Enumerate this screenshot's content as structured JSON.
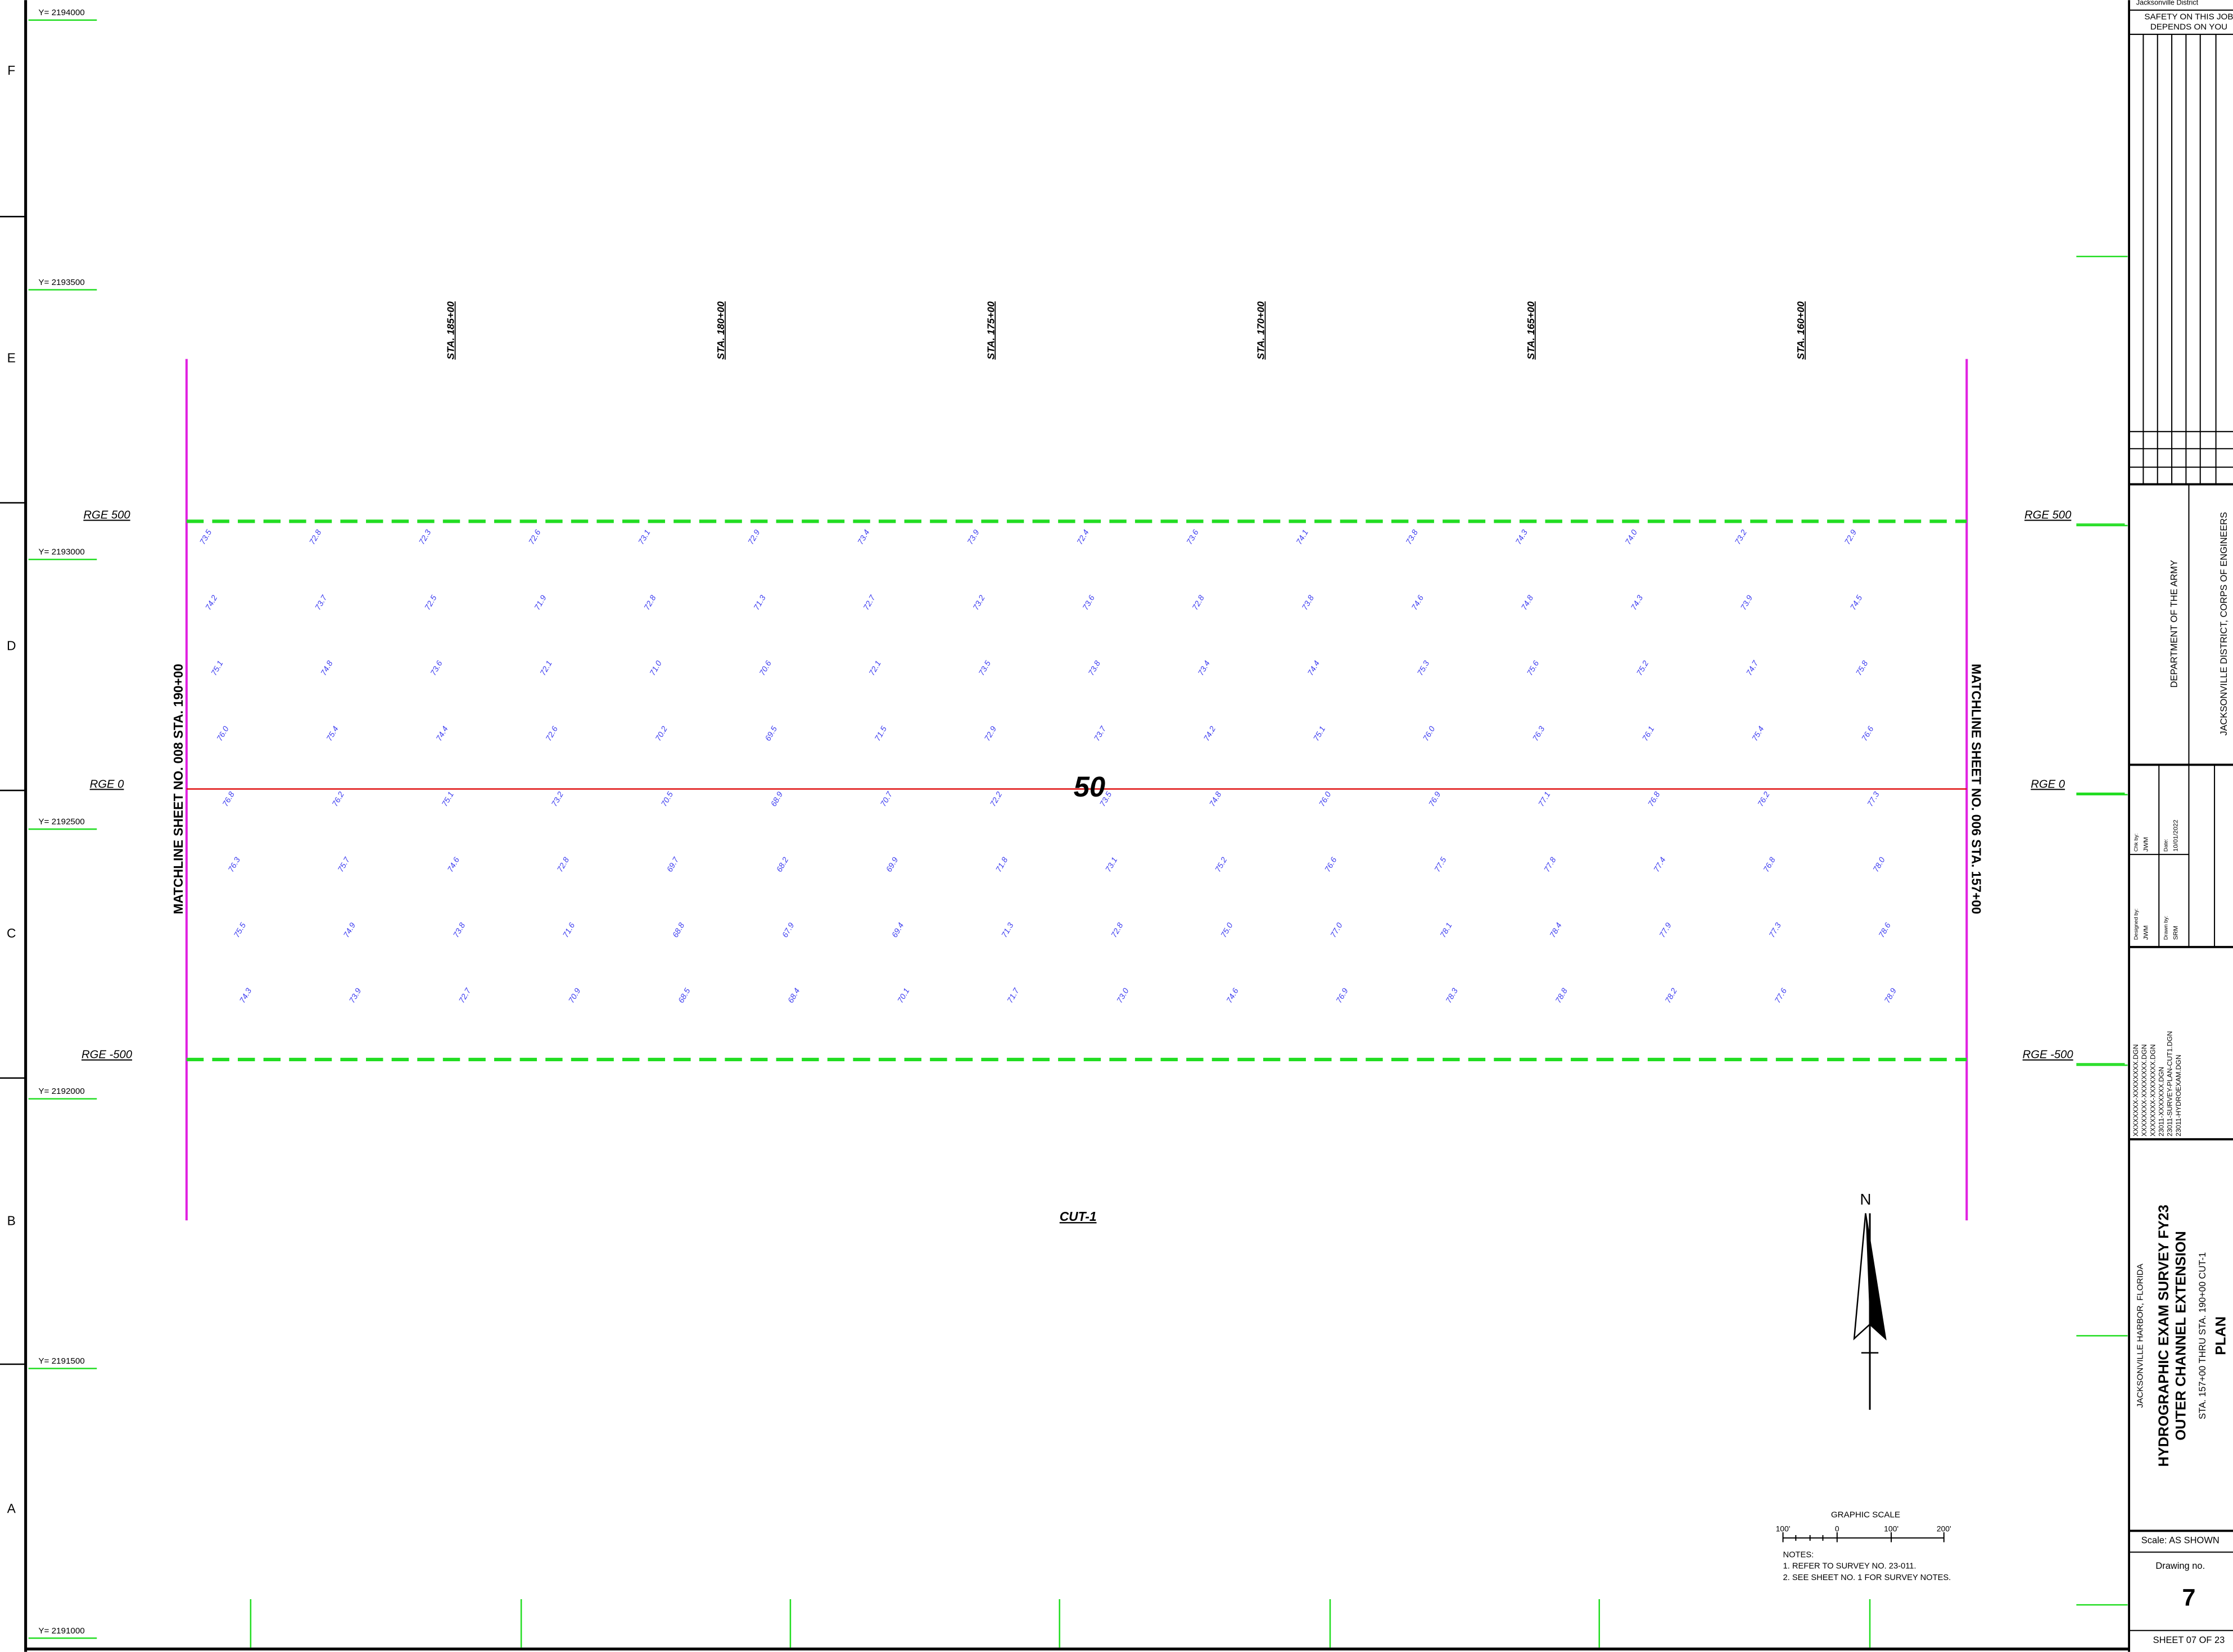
{
  "sheet": {
    "row_letters": [
      "F",
      "E",
      "D",
      "C",
      "B",
      "A"
    ],
    "y_labels": [
      "Y= 2194000",
      "Y= 2193500",
      "Y= 2193000",
      "Y= 2192500",
      "Y= 2192000",
      "Y= 2191500",
      "Y= 2191000"
    ],
    "range_labels": [
      "RGE 500",
      "RGE 0",
      "RGE -500"
    ],
    "stations": [
      "STA. 185+00",
      "STA. 180+00",
      "STA. 175+00",
      "STA. 170+00",
      "STA. 165+00",
      "STA. 160+00"
    ],
    "matchlines": {
      "left": "MATCHLINE SHEET NO. 008 STA. 190+00",
      "right": "MATCHLINE SHEET NO. 006 STA. 157+00"
    },
    "center_label": "50",
    "cut_label": "CUT-1",
    "north": "N",
    "graphic_scale": {
      "title": "GRAPHIC SCALE",
      "ticks": [
        "100'",
        "0",
        "100'",
        "200'"
      ]
    },
    "notes": {
      "heading": "NOTES:",
      "items": [
        "1. REFER TO SURVEY NO. 23-011.",
        "2. SEE SHEET NO. 1 FOR SURVEY NOTES."
      ]
    },
    "soundings": [
      [
        "73.5",
        "72.8",
        "72.3",
        "72.6",
        "73.1",
        "72.9",
        "73.4",
        "73.9",
        "72.4",
        "73.6",
        "74.1",
        "73.8",
        "74.3",
        "74.0",
        "73.2",
        "72.9"
      ],
      [
        "74.2",
        "73.7",
        "72.5",
        "71.9",
        "72.8",
        "71.3",
        "72.7",
        "73.2",
        "73.6",
        "72.8",
        "73.8",
        "74.6",
        "74.8",
        "74.3",
        "73.9",
        "74.5"
      ],
      [
        "75.1",
        "74.8",
        "73.6",
        "72.1",
        "71.0",
        "70.6",
        "72.1",
        "73.5",
        "73.8",
        "73.4",
        "74.4",
        "75.3",
        "75.6",
        "75.2",
        "74.7",
        "75.8"
      ],
      [
        "76.0",
        "75.4",
        "74.4",
        "72.6",
        "70.2",
        "69.5",
        "71.5",
        "72.9",
        "73.7",
        "74.2",
        "75.1",
        "76.0",
        "76.3",
        "76.1",
        "75.4",
        "76.6"
      ],
      [
        "76.8",
        "76.2",
        "75.1",
        "73.2",
        "70.5",
        "68.9",
        "70.7",
        "72.2",
        "73.5",
        "74.8",
        "76.0",
        "76.9",
        "77.1",
        "76.8",
        "76.2",
        "77.3"
      ],
      [
        "76.3",
        "75.7",
        "74.6",
        "72.8",
        "69.7",
        "68.2",
        "69.9",
        "71.8",
        "73.1",
        "75.2",
        "76.6",
        "77.5",
        "77.8",
        "77.4",
        "76.8",
        "78.0"
      ],
      [
        "75.5",
        "74.9",
        "73.8",
        "71.6",
        "68.8",
        "67.9",
        "69.4",
        "71.3",
        "72.8",
        "75.0",
        "77.0",
        "78.1",
        "78.4",
        "77.9",
        "77.3",
        "78.6"
      ],
      [
        "74.3",
        "73.9",
        "72.7",
        "70.9",
        "68.5",
        "68.4",
        "70.1",
        "71.7",
        "73.0",
        "74.6",
        "76.9",
        "78.3",
        "78.8",
        "78.2",
        "77.6",
        "78.9"
      ]
    ]
  },
  "title_block": {
    "district": "Jacksonville District",
    "safety": [
      "SAFETY ON THIS JOB",
      "DEPENDS ON YOU"
    ],
    "agency": [
      "DEPARTMENT OF THE ARMY",
      "JACKSONVILLE DISTRICT, CORPS OF ENGINEERS"
    ],
    "people": [
      [
        "Designed by:",
        "JWM"
      ],
      [
        "Drawn by:",
        "SRM"
      ],
      [
        "Chk by:",
        "JWM"
      ],
      [
        "Date:",
        "10/01/2022"
      ]
    ],
    "files": [
      "XXXXXXXX-XXXXXXXX.DGN",
      "XXXXXXXX-XXXXXXXX.DGN",
      "XXXXXXXX-XXXXXXXX.DGN",
      "23011-XXXXXXX.DGN",
      "23011-SURVEY-PLAN-CUT1.DGN",
      "23011-HYDROEXAM.DGN"
    ],
    "title": [
      "JACKSONVILLE HARBOR, FLORIDA",
      "HYDROGRAPHIC EXAM SURVEY FY23",
      "OUTER CHANNEL EXTENSION",
      "STA. 157+00 THRU STA. 190+00 CUT-1",
      "PLAN"
    ],
    "scale": "Scale:  AS SHOWN",
    "drawing_label": "Drawing no.",
    "drawing_no": "7",
    "sheet": "SHEET  07  OF  23"
  }
}
